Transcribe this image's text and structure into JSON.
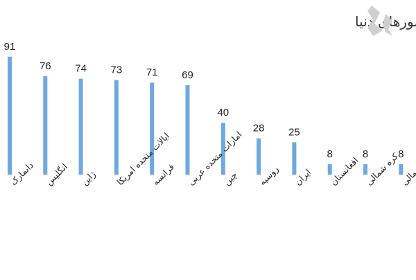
{
  "chart_data": {
    "type": "bar",
    "title": "فساد اقتصادی در کشورهای دنیا",
    "xlabel": "",
    "ylabel": "",
    "ylim": [
      0,
      100
    ],
    "grid": false,
    "legend": "none",
    "bar_color": "#6fa8dc",
    "categories": [
      "دانمارک",
      "انگلیس",
      "ژاپن",
      "ایالات متحده امریکا",
      "فرانسه",
      "امارات متحده عربی",
      "چین",
      "روسیه",
      "ایران",
      "افغانستان",
      "کره شمالی",
      "سومالی"
    ],
    "values": [
      91,
      76,
      74,
      73,
      71,
      69,
      40,
      28,
      25,
      8,
      8,
      8
    ]
  }
}
